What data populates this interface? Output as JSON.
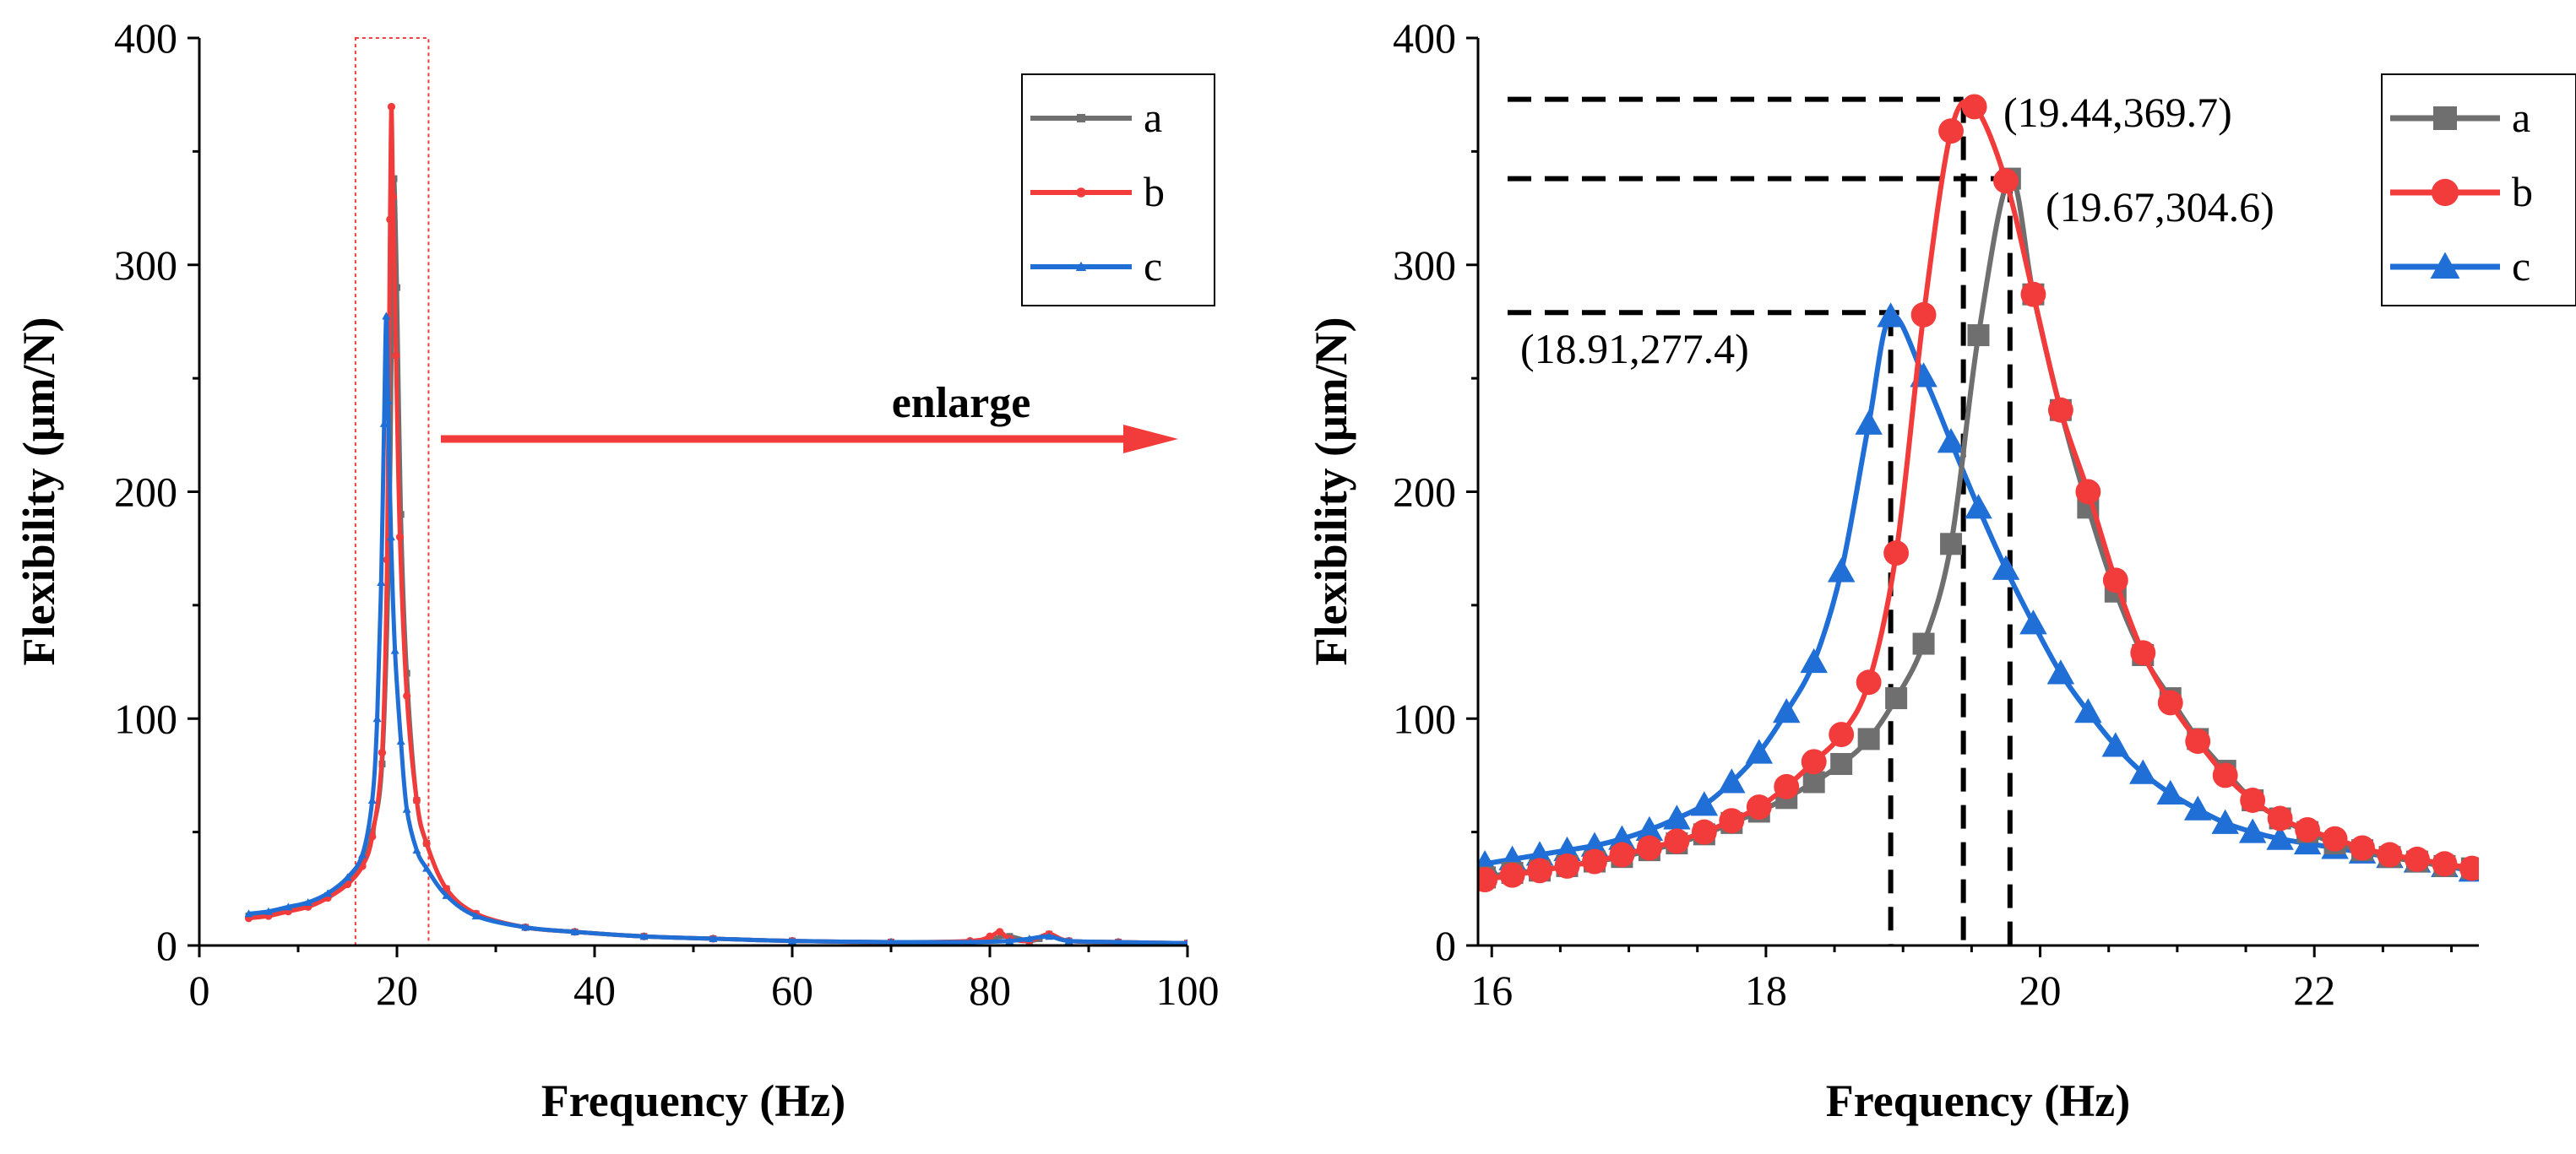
{
  "colors": {
    "a": "#6f6f6f",
    "b": "#f23b3b",
    "c": "#1f6fd6",
    "highlight": "#f23b3b"
  },
  "enlarge_label": "enlarge",
  "chart_data": [
    {
      "id": "overview",
      "type": "line",
      "xlabel": "Frequency (Hz)",
      "ylabel": "Flexibility (μm/N)",
      "xlim": [
        0,
        100
      ],
      "ylim": [
        0,
        400
      ],
      "xticks": [
        0,
        20,
        40,
        60,
        80,
        100
      ],
      "yticks": [
        0,
        100,
        200,
        300,
        400
      ],
      "legend": [
        "a",
        "b",
        "c"
      ],
      "legend_position": "top-right",
      "highlight_region": {
        "x": [
          15.8,
          23.2
        ],
        "y": [
          0,
          400
        ]
      },
      "series": [
        {
          "name": "a",
          "marker": "square",
          "x": [
            5,
            7,
            9,
            11,
            13,
            15,
            16.5,
            17.5,
            18.5,
            19.2,
            19.5,
            19.7,
            20.0,
            20.4,
            21,
            22,
            23,
            25,
            28,
            33,
            38,
            45,
            52,
            60,
            70,
            78,
            80,
            82,
            84,
            85,
            86,
            88,
            93,
            100
          ],
          "y": [
            13,
            14,
            16,
            18,
            22,
            28,
            36,
            50,
            80,
            175,
            280,
            338,
            290,
            190,
            120,
            64,
            45,
            25,
            14,
            8,
            6,
            4,
            3,
            2,
            1.5,
            1.5,
            3,
            4,
            2,
            3,
            5,
            2,
            1.5,
            1
          ]
        },
        {
          "name": "b",
          "marker": "circle",
          "x": [
            5,
            7,
            9,
            11,
            13,
            15,
            16.5,
            17.5,
            18.5,
            19.0,
            19.3,
            19.44,
            19.6,
            19.9,
            20.3,
            21,
            22,
            23,
            25,
            28,
            33,
            38,
            45,
            52,
            60,
            70,
            78,
            80,
            81,
            82,
            84,
            86,
            88,
            93,
            100
          ],
          "y": [
            12,
            13,
            15,
            17,
            21,
            27,
            35,
            48,
            85,
            170,
            320,
            369.7,
            330,
            260,
            180,
            110,
            64,
            45,
            25,
            14,
            8,
            6,
            4,
            3,
            2,
            1.5,
            2,
            4,
            6,
            3,
            2,
            5,
            2,
            1.5,
            1
          ]
        },
        {
          "name": "c",
          "marker": "triangle",
          "x": [
            5,
            7,
            9,
            11,
            13,
            15,
            16.5,
            17.5,
            18.0,
            18.4,
            18.7,
            18.91,
            19.1,
            19.4,
            19.8,
            20.4,
            21,
            22,
            23,
            25,
            28,
            33,
            38,
            45,
            52,
            60,
            70,
            78,
            82,
            84,
            86,
            88,
            93,
            100
          ],
          "y": [
            14,
            15,
            17,
            19,
            23,
            30,
            40,
            64,
            100,
            160,
            230,
            277.4,
            240,
            180,
            130,
            90,
            60,
            42,
            34,
            22,
            13,
            8,
            6,
            4,
            3,
            2,
            1.5,
            1.5,
            2,
            3,
            4,
            2,
            1.5,
            1
          ]
        }
      ]
    },
    {
      "id": "enlarged",
      "type": "line",
      "xlabel": "Frequency (Hz)",
      "ylabel": "Flexibility (μm/N)",
      "xlim": [
        15.9,
        23.2
      ],
      "ylim": [
        0,
        400
      ],
      "xticks": [
        16,
        18,
        20,
        22
      ],
      "yticks": [
        0,
        100,
        200,
        300,
        400
      ],
      "legend": [
        "a",
        "b",
        "c"
      ],
      "legend_position": "top-right",
      "series": [
        {
          "name": "a",
          "marker": "square",
          "x": [
            15.95,
            16.15,
            16.35,
            16.55,
            16.75,
            16.95,
            17.15,
            17.35,
            17.55,
            17.75,
            17.95,
            18.15,
            18.35,
            18.55,
            18.75,
            18.95,
            19.15,
            19.35,
            19.55,
            19.78,
            19.95,
            20.15,
            20.35,
            20.55,
            20.75,
            20.95,
            21.15,
            21.35,
            21.55,
            21.75,
            21.95,
            22.15,
            22.35,
            22.55,
            22.75,
            22.95,
            23.15
          ],
          "y": [
            30,
            32,
            33,
            35,
            37,
            39,
            42,
            45,
            49,
            54,
            59,
            65,
            72,
            80,
            91,
            109,
            133,
            177,
            269,
            338,
            287,
            236,
            193,
            156,
            128,
            109,
            91,
            77,
            64,
            56,
            50,
            45,
            42,
            39,
            37,
            35,
            34
          ]
        },
        {
          "name": "b",
          "marker": "circle",
          "x": [
            15.95,
            16.15,
            16.35,
            16.55,
            16.75,
            16.95,
            17.15,
            17.35,
            17.55,
            17.75,
            17.95,
            18.15,
            18.35,
            18.55,
            18.75,
            18.95,
            19.15,
            19.35,
            19.52,
            19.75,
            19.95,
            20.15,
            20.35,
            20.55,
            20.75,
            20.95,
            21.15,
            21.35,
            21.55,
            21.75,
            21.95,
            22.15,
            22.35,
            22.55,
            22.75,
            22.95,
            23.15
          ],
          "y": [
            29,
            31,
            33,
            35,
            37,
            40,
            43,
            46,
            50,
            55,
            61,
            70,
            81,
            93,
            116,
            173,
            278,
            359,
            369.7,
            337,
            287,
            236,
            200,
            161,
            129,
            107,
            90,
            75,
            64,
            56,
            51,
            47,
            43,
            40,
            38,
            36,
            34
          ]
        },
        {
          "name": "c",
          "marker": "triangle",
          "x": [
            15.95,
            16.15,
            16.35,
            16.55,
            16.75,
            16.95,
            17.15,
            17.35,
            17.55,
            17.75,
            17.95,
            18.15,
            18.35,
            18.55,
            18.75,
            18.91,
            19.15,
            19.35,
            19.55,
            19.75,
            19.95,
            20.15,
            20.35,
            20.55,
            20.75,
            20.95,
            21.15,
            21.35,
            21.55,
            21.75,
            21.95,
            22.15,
            22.35,
            22.55,
            22.75,
            22.95,
            23.15
          ],
          "y": [
            36,
            38,
            40,
            42,
            44,
            47,
            51,
            56,
            62,
            72,
            85,
            103,
            125,
            165,
            230,
            277.4,
            251,
            222,
            193,
            166,
            142,
            120,
            103,
            88,
            76,
            67,
            60,
            54,
            50,
            47,
            45,
            43,
            41,
            39,
            37,
            35,
            33
          ]
        }
      ],
      "annotations": [
        {
          "text": "(19.44,369.7)",
          "series": "b",
          "x": 19.44,
          "y": 369.7,
          "anchor": "right"
        },
        {
          "text": "(19.67,304.6)",
          "series": "a",
          "x": 19.67,
          "y": 304.6,
          "anchor": "right-below"
        },
        {
          "text": "(18.91,277.4)",
          "series": "c",
          "x": 18.91,
          "y": 277.4,
          "anchor": "left-below"
        }
      ]
    }
  ]
}
